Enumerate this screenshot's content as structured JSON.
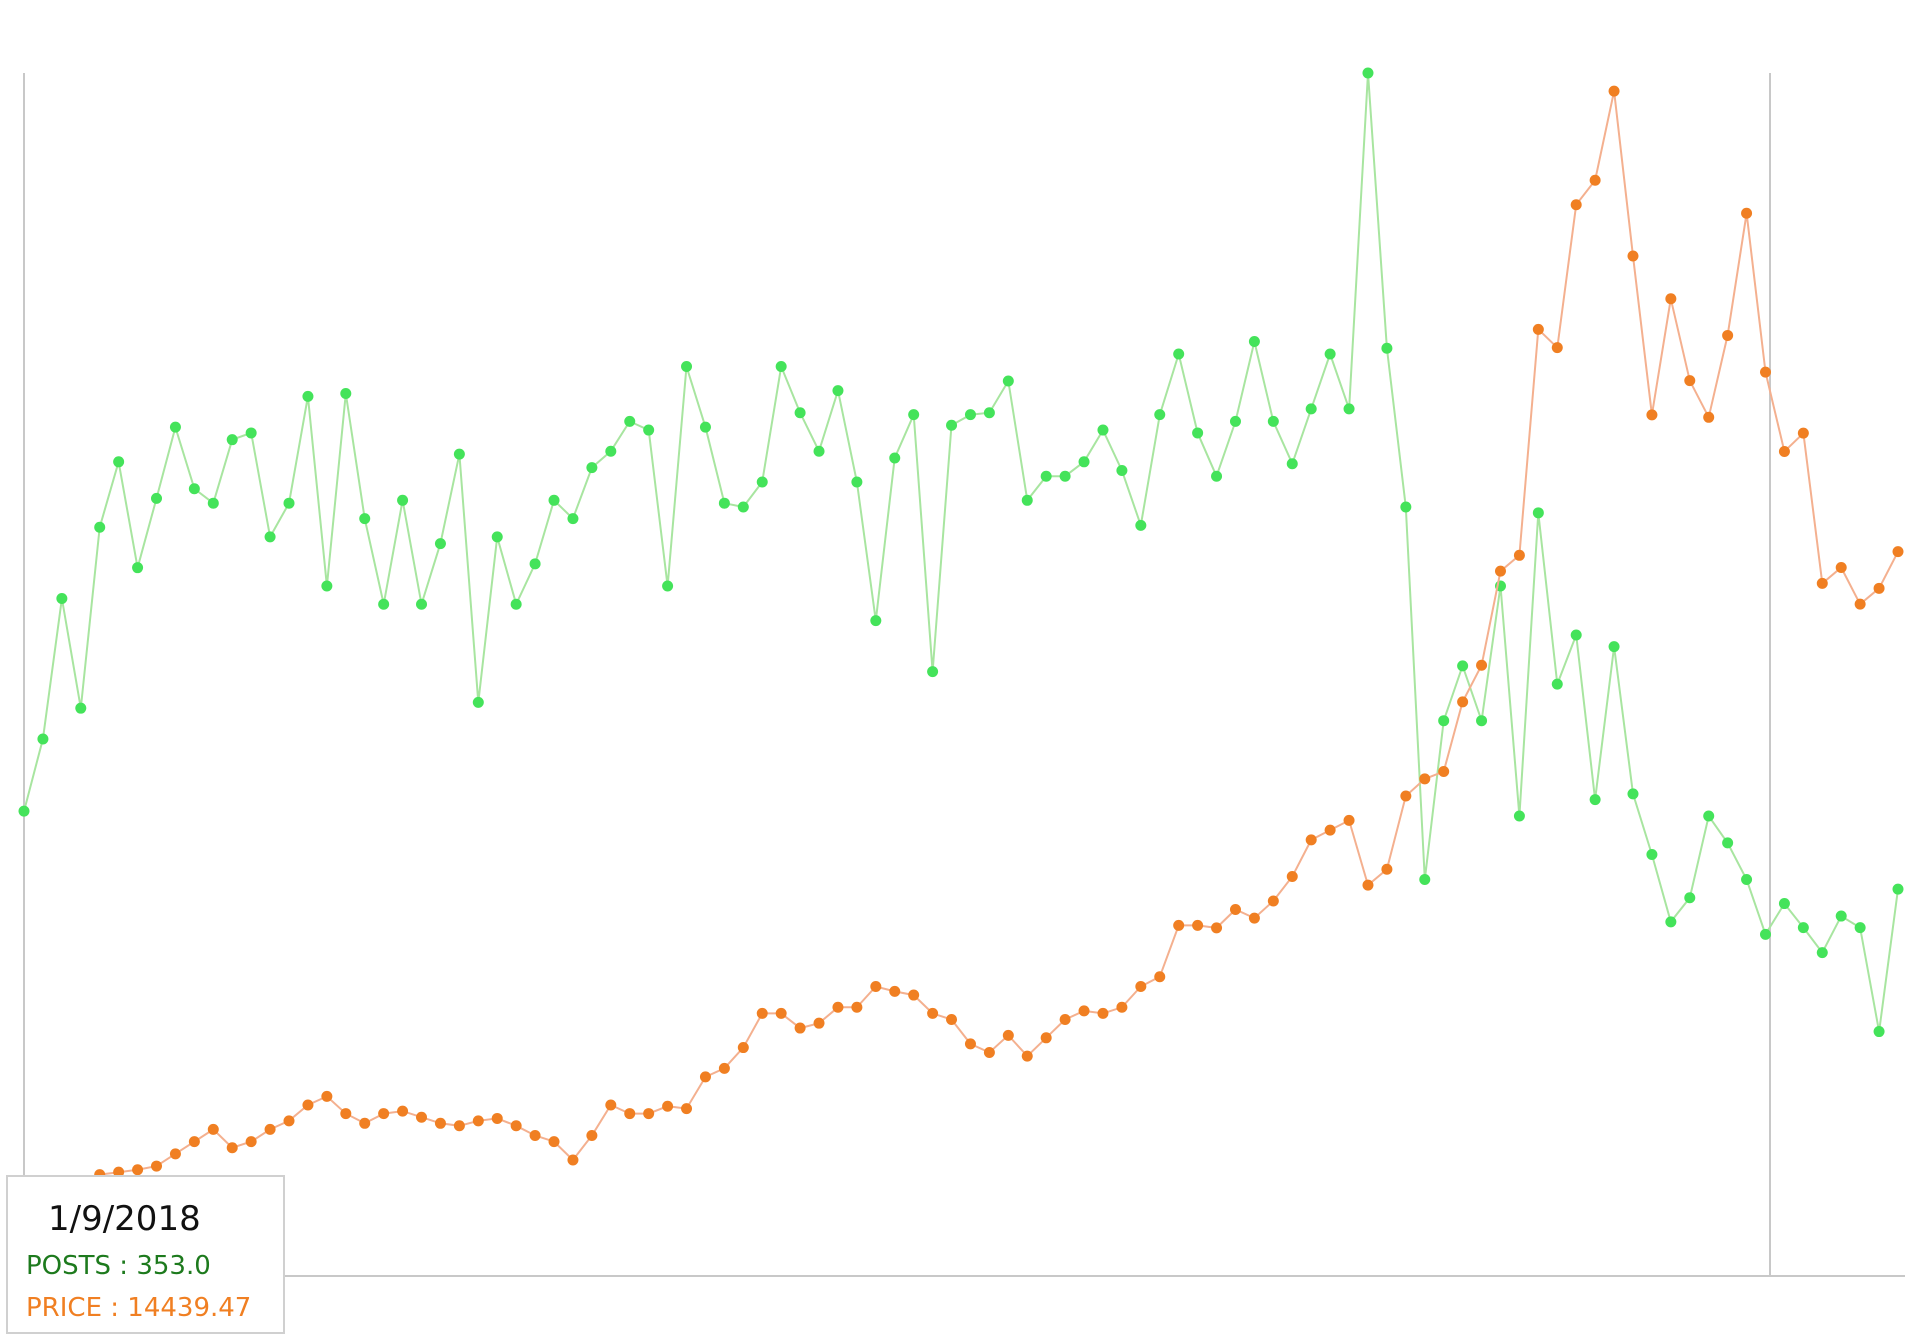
{
  "chart_data": {
    "type": "line",
    "ylim": [
      0,
      1250
    ],
    "y2lim": [
      0,
      19500
    ],
    "series": [
      {
        "color": "#44e35a",
        "line_color": "#a8e5a0",
        "values": [
          483,
          558,
          704,
          590,
          778,
          846,
          736,
          808,
          882,
          818,
          803,
          869,
          876,
          768,
          803,
          914,
          717,
          917,
          787,
          698,
          806,
          698,
          761,
          854,
          596,
          768,
          698,
          740,
          806,
          787,
          840,
          857,
          888,
          879,
          717,
          945,
          882,
          803,
          799,
          825,
          945,
          897,
          857,
          920,
          825,
          681,
          850,
          895,
          628,
          884,
          895,
          897,
          930,
          806,
          831,
          831,
          846,
          879,
          837,
          780,
          895,
          958,
          876,
          831,
          888,
          971,
          888,
          844,
          901,
          958,
          901,
          1250,
          964,
          799,
          412,
          577,
          634,
          577,
          717,
          478,
          793,
          615,
          666,
          495,
          654,
          501,
          438,
          368,
          393,
          478,
          450,
          412,
          355,
          387,
          362,
          336,
          374,
          362,
          254,
          402
        ]
      },
      {
        "color": "#f07f22",
        "line_color": "#f4b08f",
        "axis": "y2",
        "values": [
          1089,
          1188,
          1386,
          1525,
          1643,
          1683,
          1723,
          1782,
          1980,
          2178,
          2376,
          2079,
          2178,
          2376,
          2515,
          2772,
          2911,
          2633,
          2475,
          2633,
          2673,
          2574,
          2475,
          2435,
          2515,
          2554,
          2435,
          2277,
          2178,
          1881,
          2277,
          2772,
          2633,
          2633,
          2752,
          2713,
          3227,
          3366,
          3703,
          4257,
          4257,
          4019,
          4098,
          4356,
          4356,
          4693,
          4613,
          4554,
          4257,
          4158,
          3762,
          3623,
          3901,
          3564,
          3861,
          4158,
          4297,
          4257,
          4356,
          4693,
          4851,
          5683,
          5683,
          5643,
          5940,
          5801,
          6079,
          6475,
          7069,
          7227,
          7385,
          6336,
          6593,
          7781,
          8058,
          8177,
          9306,
          9900,
          11425,
          11682,
          15345,
          15048,
          17365,
          17761,
          19206,
          16533,
          13959,
          15840,
          14513,
          13919,
          15246,
          17226,
          14652,
          13365,
          13662,
          11227,
          11484,
          10890,
          11147,
          11741
        ]
      }
    ]
  },
  "tooltip": {
    "date": "1/9/2018",
    "lines": [
      "POSTS : 353.0",
      "PRICE : 14439.47"
    ]
  }
}
